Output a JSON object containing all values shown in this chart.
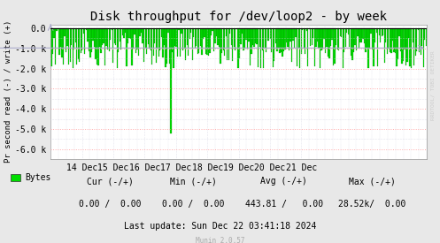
{
  "title": "Disk throughput for /dev/loop2 - by week",
  "ylabel": "Pr second read (-) / write (+)",
  "xlim_start": 1733788800,
  "xlim_end": 1734825600,
  "ylim": [
    -6500,
    200
  ],
  "yticks": [
    0,
    -1000,
    -2000,
    -3000,
    -4000,
    -5000,
    -6000
  ],
  "ytick_labels": [
    "0.0",
    "-1.0 k",
    "-2.0 k",
    "-3.0 k",
    "-4.0 k",
    "-5.0 k",
    "-6.0 k"
  ],
  "xtick_dates": [
    {
      "label": "14 Dec",
      "ts": 1733875200
    },
    {
      "label": "15 Dec",
      "ts": 1733961600
    },
    {
      "label": "16 Dec",
      "ts": 1734048000
    },
    {
      "label": "17 Dec",
      "ts": 1734134400
    },
    {
      "label": "18 Dec",
      "ts": 1734220800
    },
    {
      "label": "19 Dec",
      "ts": 1734307200
    },
    {
      "label": "20 Dec",
      "ts": 1734393600
    },
    {
      "label": "21 Dec",
      "ts": 1734480000
    }
  ],
  "bar_color": "#00dd00",
  "bar_edge_color": "#007700",
  "background_color": "#e8e8e8",
  "plot_bg_color": "#ffffff",
  "grid_color_major": "#ffaaaa",
  "grid_color_minor": "#ccccdd",
  "spike_x": 1734120000,
  "spike_y": -5200,
  "n_bars": 280,
  "legend_label": "Bytes",
  "cur_minus": "0.00",
  "cur_plus": "0.00",
  "min_minus": "0.00",
  "min_plus": "0.00",
  "avg_minus": "443.81",
  "avg_plus": "0.00",
  "max_minus": "28.52k",
  "max_plus": "0.00",
  "last_update": "Last update: Sun Dec 22 03:41:18 2024",
  "munin_version": "Munin 2.0.57",
  "rrdtool_label": "RRDTOOL/ TOBI OETIKER",
  "title_fontsize": 10,
  "axis_fontsize": 7,
  "watermark_fontsize": 5
}
